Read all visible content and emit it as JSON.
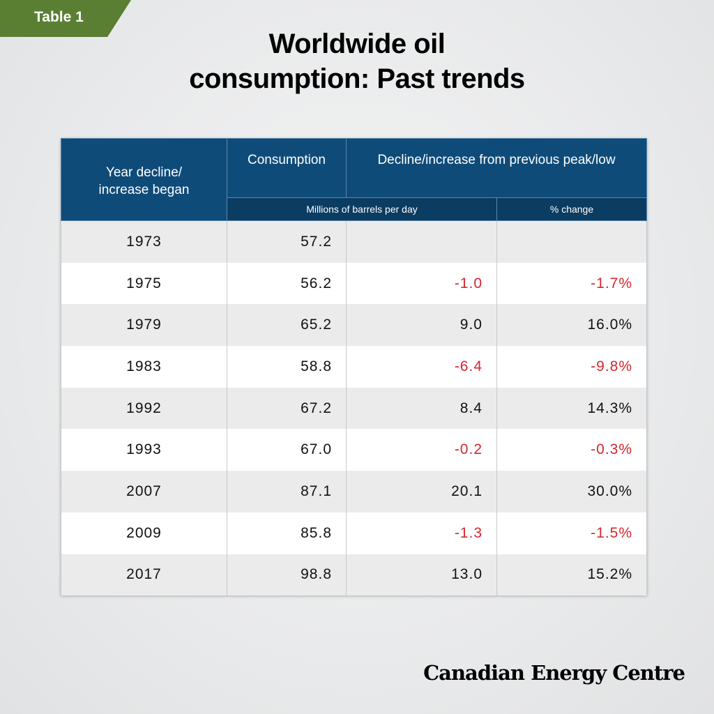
{
  "badge": "Table 1",
  "title_line1": "Worldwide oil",
  "title_line2": "consumption: Past trends",
  "colors": {
    "header": "#0f4b78",
    "subheader": "#0b3c62",
    "negative": "#d7262e",
    "badge": "#5a7f33"
  },
  "chart_data": {
    "type": "table",
    "headers": {
      "year": "Year decline/ increase began",
      "consumption": "Consumption",
      "change": "Decline/increase from previous peak/low",
      "units": "Millions of barrels per day",
      "pct": "% change"
    },
    "rows": [
      {
        "year": "1973",
        "consumption": "57.2",
        "change": "",
        "pct": ""
      },
      {
        "year": "1975",
        "consumption": "56.2",
        "change": "-1.0",
        "pct": "-1.7%"
      },
      {
        "year": "1979",
        "consumption": "65.2",
        "change": "9.0",
        "pct": "16.0%"
      },
      {
        "year": "1983",
        "consumption": "58.8",
        "change": "-6.4",
        "pct": "-9.8%"
      },
      {
        "year": "1992",
        "consumption": "67.2",
        "change": "8.4",
        "pct": "14.3%"
      },
      {
        "year": "1993",
        "consumption": "67.0",
        "change": "-0.2",
        "pct": "-0.3%"
      },
      {
        "year": "2007",
        "consumption": "87.1",
        "change": "20.1",
        "pct": "30.0%"
      },
      {
        "year": "2009",
        "consumption": "85.8",
        "change": "-1.3",
        "pct": "-1.5%"
      },
      {
        "year": "2017",
        "consumption": "98.8",
        "change": "13.0",
        "pct": "15.2%"
      }
    ]
  },
  "footer": "Canadian Energy Centre"
}
